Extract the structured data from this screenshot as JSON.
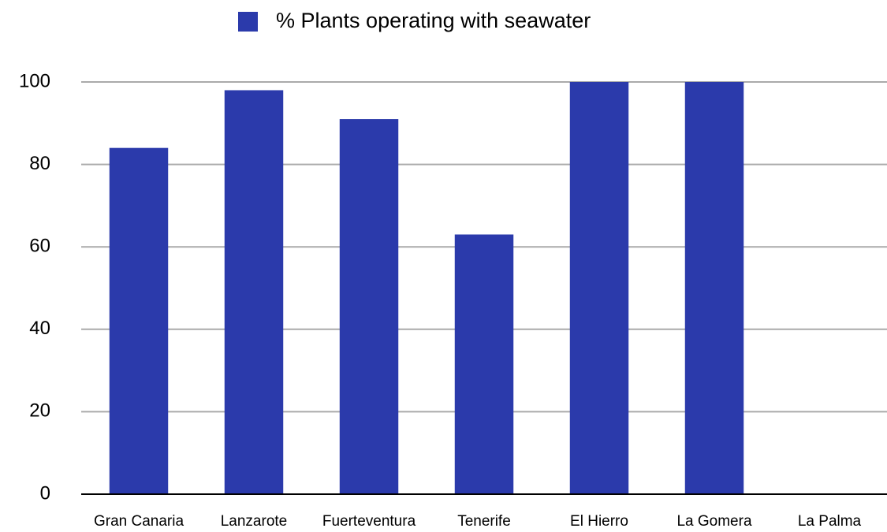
{
  "chart_data": {
    "type": "bar",
    "categories": [
      "Gran Canaria",
      "Lanzarote",
      "Fuerteventura",
      "Tenerife",
      "El Hierro",
      "La Gomera",
      "La Palma"
    ],
    "series": [
      {
        "name": "% Plants operating with seawater",
        "color": "#2b3aab",
        "values": [
          84,
          98,
          91,
          63,
          100,
          100,
          0
        ]
      }
    ],
    "ylim": [
      0,
      100
    ],
    "yticks": [
      0,
      20,
      40,
      60,
      80,
      100
    ],
    "grid": true,
    "legend": "top"
  }
}
